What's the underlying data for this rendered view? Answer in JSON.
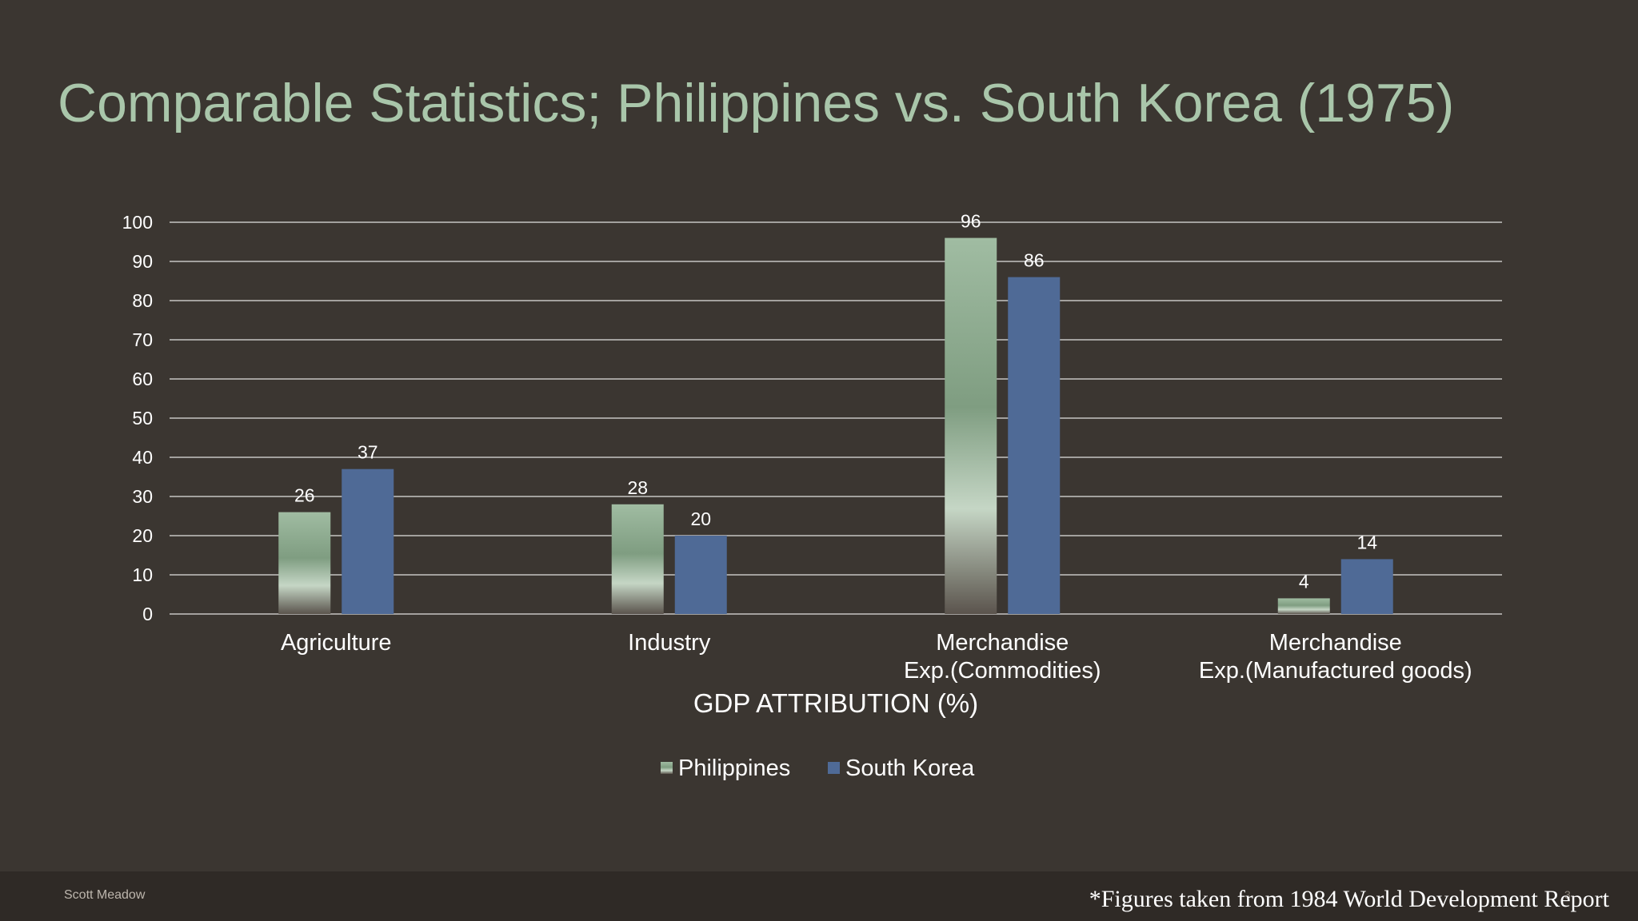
{
  "slide": {
    "title": "Comparable Statistics; Philippines vs. South Korea (1975)",
    "author": "Scott Meadow",
    "note": "*Figures taken from 1984 World Development Report",
    "page_number": "3"
  },
  "colors": {
    "background": "#3b3631",
    "title": "#a9c6aa",
    "philippines": "#8fae91",
    "south_korea": "#4f6a96",
    "gridline": "#ffffff",
    "text": "#ffffff"
  },
  "chart_data": {
    "type": "bar",
    "categories": [
      [
        "Agriculture"
      ],
      [
        "Industry"
      ],
      [
        "Merchandise",
        "Exp.(Commodities)"
      ],
      [
        "Merchandise",
        "Exp.(Manufactured goods)"
      ]
    ],
    "series": [
      {
        "name": "Philippines",
        "values": [
          26,
          28,
          96,
          4
        ]
      },
      {
        "name": "South Korea",
        "values": [
          37,
          20,
          86,
          14
        ]
      }
    ],
    "xlabel": "GDP ATTRIBUTION (%)",
    "ylabel": "",
    "ylim": [
      0,
      100
    ],
    "yticks": [
      "0",
      "10",
      "20",
      "30",
      "40",
      "50",
      "60",
      "70",
      "80",
      "90",
      "100"
    ],
    "grid": true,
    "legend_position": "bottom"
  }
}
